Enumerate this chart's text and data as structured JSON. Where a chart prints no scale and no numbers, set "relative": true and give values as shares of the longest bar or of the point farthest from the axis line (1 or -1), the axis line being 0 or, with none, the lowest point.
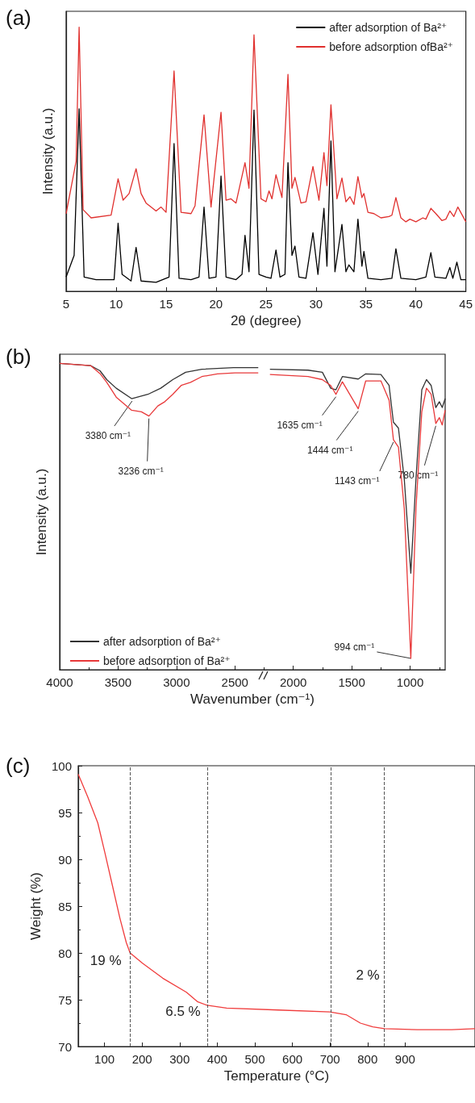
{
  "chart_data": [
    {
      "type": "line",
      "title": "(a)",
      "xlabel": "2θ (degree)",
      "ylabel": "Intensity (a.u.)",
      "relative": true,
      "xlim": [
        5,
        45
      ],
      "xticks": [
        5,
        10,
        15,
        20,
        25,
        30,
        35,
        40,
        45
      ],
      "legend": "top right",
      "grid": false,
      "series": [
        {
          "name": "after adsorption of Ba²⁺",
          "color": "#000000",
          "x": [
            5.0,
            5.8,
            6.3,
            6.8,
            8.0,
            9.8,
            10.2,
            10.6,
            11.5,
            12.0,
            12.5,
            14.0,
            15.3,
            15.8,
            16.3,
            17.5,
            18.3,
            18.8,
            19.3,
            20.0,
            20.5,
            21.0,
            22.0,
            22.6,
            22.9,
            23.3,
            23.8,
            24.3,
            25.0,
            25.5,
            26.0,
            26.4,
            26.9,
            27.2,
            27.6,
            27.9,
            28.3,
            29.0,
            29.7,
            30.2,
            30.8,
            31.1,
            31.5,
            31.9,
            32.6,
            33.0,
            33.3,
            33.8,
            34.2,
            34.6,
            34.8,
            35.2,
            36.5,
            37.6,
            38.0,
            38.5,
            40.0,
            41.0,
            41.5,
            41.9,
            43.0,
            43.4,
            43.7,
            44.1,
            44.5,
            45.0
          ],
          "values": [
            0.054,
            0.136,
            0.691,
            0.054,
            0.044,
            0.044,
            0.258,
            0.064,
            0.039,
            0.166,
            0.039,
            0.034,
            0.054,
            0.559,
            0.049,
            0.044,
            0.054,
            0.319,
            0.049,
            0.054,
            0.436,
            0.054,
            0.044,
            0.064,
            0.212,
            0.074,
            0.686,
            0.064,
            0.054,
            0.049,
            0.156,
            0.054,
            0.064,
            0.487,
            0.136,
            0.171,
            0.054,
            0.049,
            0.222,
            0.064,
            0.314,
            0.095,
            0.569,
            0.074,
            0.253,
            0.074,
            0.1,
            0.074,
            0.273,
            0.095,
            0.151,
            0.049,
            0.044,
            0.049,
            0.161,
            0.049,
            0.044,
            0.054,
            0.146,
            0.054,
            0.049,
            0.09,
            0.049,
            0.11,
            0.044,
            0.044
          ]
        },
        {
          "name": "before adsorption ofBa²⁺",
          "color": "#e0302e",
          "x": [
            5.0,
            6.0,
            6.3,
            6.7,
            7.5,
            9.5,
            10.2,
            10.7,
            11.3,
            12.0,
            12.5,
            13.0,
            14.0,
            14.5,
            15.0,
            15.8,
            16.5,
            17.5,
            17.9,
            18.8,
            19.5,
            20.5,
            21.0,
            21.5,
            22.0,
            22.9,
            23.3,
            23.8,
            24.5,
            25.0,
            25.3,
            25.6,
            26.0,
            26.6,
            27.2,
            27.6,
            27.9,
            28.5,
            29.0,
            29.7,
            30.3,
            30.8,
            31.1,
            31.5,
            32.1,
            32.6,
            33.0,
            33.4,
            33.8,
            34.2,
            34.6,
            34.8,
            35.2,
            35.8,
            36.5,
            37.3,
            37.6,
            38.0,
            38.5,
            39.0,
            39.4,
            40.0,
            40.7,
            41.0,
            41.5,
            42.0,
            42.6,
            43.0,
            43.4,
            43.8,
            44.2,
            45.0
          ],
          "values": [
            0.294,
            0.492,
            1.0,
            0.309,
            0.278,
            0.288,
            0.426,
            0.345,
            0.37,
            0.464,
            0.37,
            0.334,
            0.304,
            0.319,
            0.299,
            0.834,
            0.299,
            0.294,
            0.324,
            0.668,
            0.319,
            0.678,
            0.345,
            0.35,
            0.334,
            0.487,
            0.39,
            0.971,
            0.35,
            0.339,
            0.38,
            0.35,
            0.441,
            0.355,
            0.821,
            0.39,
            0.431,
            0.334,
            0.339,
            0.472,
            0.345,
            0.525,
            0.4,
            0.706,
            0.35,
            0.429,
            0.339,
            0.358,
            0.329,
            0.434,
            0.355,
            0.37,
            0.299,
            0.294,
            0.278,
            0.283,
            0.288,
            0.355,
            0.278,
            0.263,
            0.273,
            0.263,
            0.278,
            0.273,
            0.314,
            0.294,
            0.268,
            0.273,
            0.304,
            0.283,
            0.319,
            0.263
          ]
        }
      ]
    },
    {
      "type": "line",
      "title": "(b)",
      "xlabel": "Wavenumber (cm⁻¹)",
      "ylabel": "Intensity (a.u.)",
      "relative": true,
      "xlim": [
        4000,
        700
      ],
      "xticks": [
        4000,
        3500,
        3000,
        2500,
        2000,
        1500,
        1000
      ],
      "legend": "bottom left",
      "grid": false,
      "series": [
        {
          "name": "after adsorption of Ba²⁺",
          "color": "#333333",
          "x": [
            4000,
            3736,
            3655,
            3597,
            3516,
            3384,
            3245,
            3135,
            3032,
            2922,
            2783,
            2512,
            2300,
            2250,
            2200,
            1874,
            1751,
            1680,
            1635,
            1580,
            1444,
            1380,
            1250,
            1180,
            1143,
            1100,
            1050,
            994,
            950,
            900,
            860,
            820,
            780,
            750,
            725,
            700
          ],
          "values": [
            1.0,
            0.993,
            0.976,
            0.947,
            0.919,
            0.885,
            0.899,
            0.919,
            0.947,
            0.971,
            0.981,
            0.986,
            0.986,
            null,
            0.981,
            0.978,
            0.971,
            0.919,
            0.914,
            0.957,
            0.949,
            0.966,
            0.964,
            0.928,
            0.808,
            0.789,
            0.622,
            0.315,
            0.622,
            0.914,
            0.947,
            0.928,
            0.856,
            0.875,
            0.856,
            0.885
          ]
        },
        {
          "name": "before adsorption of Ba²⁺",
          "color": "#e8393a",
          "x": [
            4000,
            3736,
            3655,
            3597,
            3516,
            3384,
            3300,
            3236,
            3160,
            3100,
            3032,
            2960,
            2880,
            2783,
            2650,
            2500,
            2300,
            2250,
            2200,
            1874,
            1751,
            1680,
            1635,
            1580,
            1444,
            1380,
            1250,
            1180,
            1143,
            1100,
            1050,
            994,
            950,
            900,
            860,
            820,
            780,
            750,
            725,
            700
          ],
          "values": [
            1.0,
            0.993,
            0.967,
            0.938,
            0.89,
            0.847,
            0.842,
            0.828,
            0.861,
            0.875,
            0.899,
            0.928,
            0.938,
            0.957,
            0.966,
            0.969,
            0.969,
            null,
            0.964,
            0.957,
            0.947,
            0.928,
            0.899,
            0.94,
            0.852,
            0.943,
            0.943,
            0.88,
            0.751,
            0.727,
            0.526,
            0.037,
            0.526,
            0.842,
            0.919,
            0.899,
            0.804,
            0.823,
            0.799,
            0.847
          ]
        }
      ],
      "annotations": [
        {
          "text": "3380 cm⁻¹",
          "x": 3380,
          "y": 0.885
        },
        {
          "text": "3236 cm⁻¹",
          "x": 3236,
          "y": 0.828
        },
        {
          "text": "1635 cm⁻¹",
          "x": 1635,
          "y": 0.899
        },
        {
          "text": "1444 cm⁻¹",
          "x": 1444,
          "y": 0.852
        },
        {
          "text": "1143 cm⁻¹",
          "x": 1143,
          "y": 0.751
        },
        {
          "text": "780 cm⁻¹",
          "x": 780,
          "y": 0.804
        },
        {
          "text": "994 cm⁻¹",
          "x": 994,
          "y": 0.037
        }
      ]
    },
    {
      "type": "line",
      "title": "(c)",
      "xlabel": "Temperature (°C)",
      "ylabel": "Weight (%)",
      "color": "#f03c3c",
      "xlim": [
        30,
        1086
      ],
      "xticks": [
        100,
        200,
        300,
        400,
        500,
        600,
        700,
        800,
        900
      ],
      "ylim": [
        70,
        100
      ],
      "yticks": [
        70,
        75,
        80,
        85,
        90,
        95,
        100
      ],
      "grid": false,
      "x": [
        30,
        55,
        82,
        101,
        121,
        141,
        158,
        168,
        201,
        255,
        318,
        347,
        373,
        425,
        562,
        700,
        743,
        781,
        814,
        845,
        932,
        1024,
        1086
      ],
      "values": [
        99.1,
        96.7,
        93.9,
        90.7,
        87.2,
        83.7,
        81.1,
        80.0,
        78.9,
        77.3,
        75.8,
        74.8,
        74.4,
        74.1,
        73.9,
        73.7,
        73.4,
        72.5,
        72.1,
        71.9,
        71.8,
        71.8,
        71.9
      ],
      "ref_lines": [
        {
          "axis": "x",
          "value": 168,
          "color": "#555555",
          "line_style": "dashed"
        },
        {
          "axis": "x",
          "value": 373,
          "color": "#555555",
          "line_style": "dashed"
        },
        {
          "axis": "x",
          "value": 702,
          "color": "#555555",
          "line_style": "dashed"
        },
        {
          "axis": "x",
          "value": 845,
          "color": "#555555",
          "line_style": "dashed"
        }
      ],
      "annotations": [
        "19 %",
        "6.5 %",
        "2 %"
      ]
    }
  ]
}
